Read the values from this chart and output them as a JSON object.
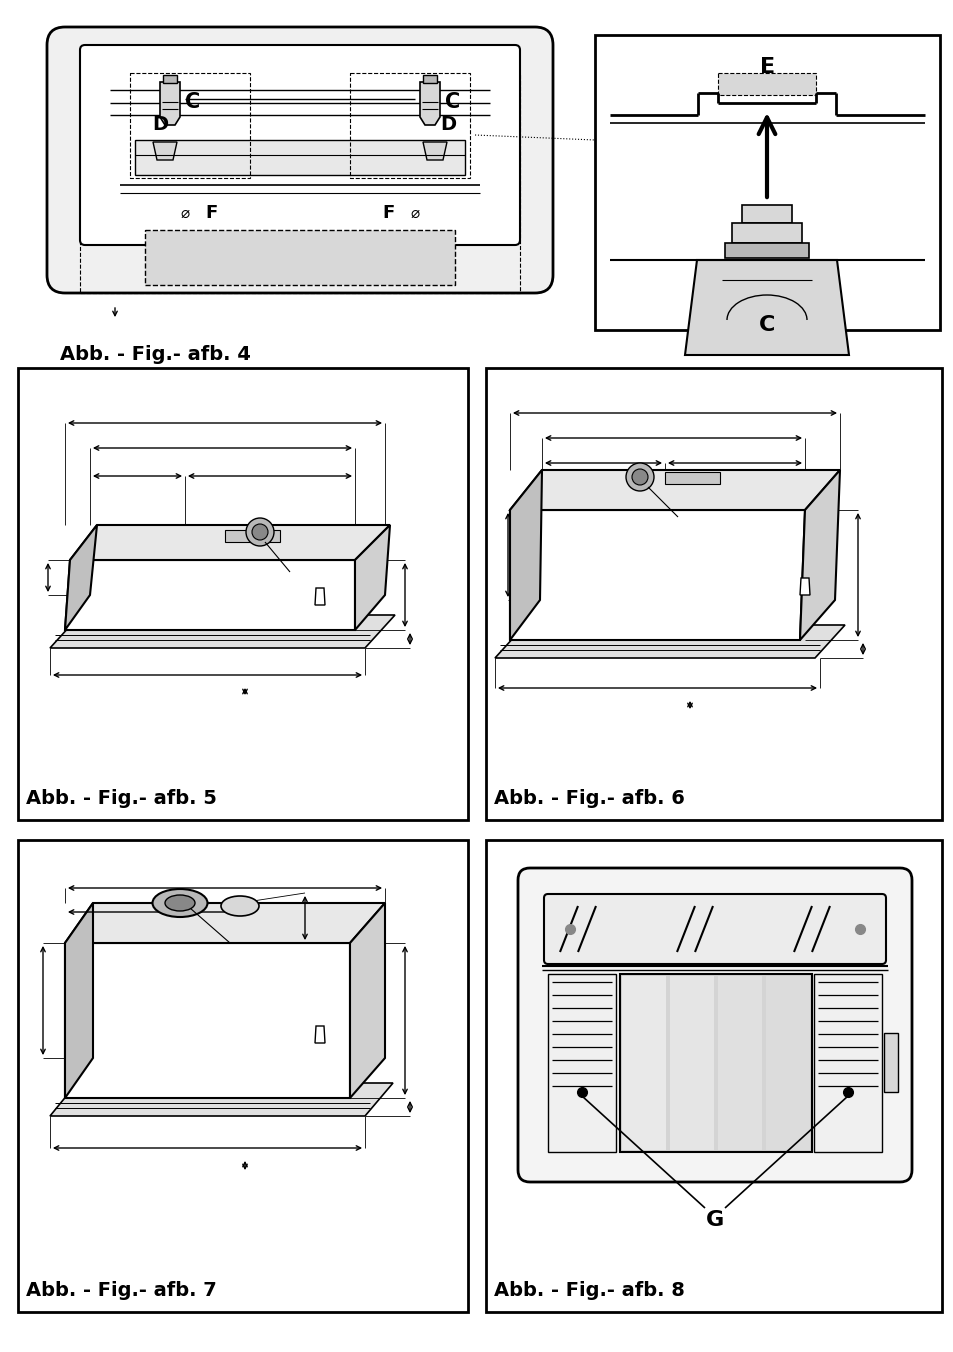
{
  "bg_color": "#ffffff",
  "line_color": "#000000",
  "gray_light": "#d8d8d8",
  "gray_med": "#b8b8b8",
  "gray_dark": "#888888",
  "fig4_label": "Abb. - Fig.- afb. 4",
  "fig5_label": "Abb. - Fig.- afb. 5",
  "fig6_label": "Abb. - Fig.- afb. 6",
  "fig7_label": "Abb. - Fig.- afb. 7",
  "fig8_label": "Abb. - Fig.- afb. 8",
  "label_fontsize": 14
}
